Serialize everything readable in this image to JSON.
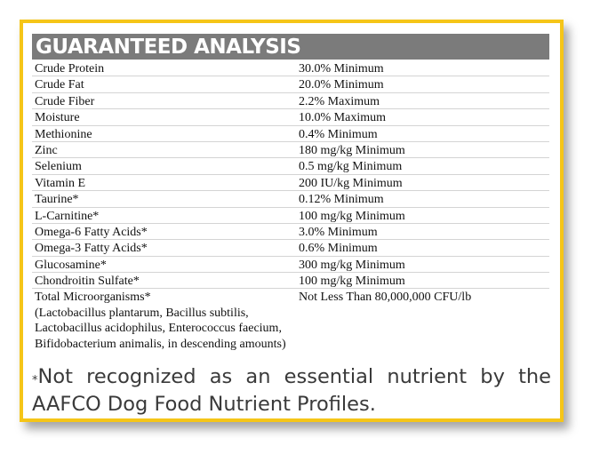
{
  "header": {
    "title": "GUARANTEED ANALYSIS"
  },
  "rows": [
    {
      "name": "Crude Protein",
      "value": "30.0% Minimum"
    },
    {
      "name": "Crude Fat",
      "value": "20.0% Minimum"
    },
    {
      "name": "Crude Fiber",
      "value": "2.2% Maximum"
    },
    {
      "name": "Moisture",
      "value": "10.0% Maximum"
    },
    {
      "name": "Methionine",
      "value": "0.4% Minimum"
    },
    {
      "name": "Zinc",
      "value": "180 mg/kg Minimum"
    },
    {
      "name": "Selenium",
      "value": "0.5 mg/kg Minimum"
    },
    {
      "name": "Vitamin E",
      "value": "200 IU/kg Minimum"
    },
    {
      "name": "Taurine*",
      "value": "0.12% Minimum"
    },
    {
      "name": "L-Carnitine*",
      "value": "100 mg/kg Minimum"
    },
    {
      "name": "Omega-6 Fatty Acids*",
      "value": "3.0% Minimum"
    },
    {
      "name": "Omega-3 Fatty Acids*",
      "value": "0.6% Minimum"
    },
    {
      "name": "Glucosamine*",
      "value": "300 mg/kg Minimum"
    },
    {
      "name": "Chondroitin Sulfate*",
      "value": "100 mg/kg Minimum"
    },
    {
      "name": "Total Microorganisms*\n(Lactobacillus plantarum, Bacillus subtilis,\nLactobacillus acidophilus, Enterococcus faecium,\nBifidobacterium animalis, in descending amounts)",
      "value": "Not Less Than 80,000,000 CFU/lb"
    }
  ],
  "footnote": {
    "marker": "*",
    "text": "Not recognized as an essential nutrient by the AAFCO Dog Food Nutrient Profiles."
  },
  "colors": {
    "border": "#f5c518",
    "header_bg": "#7b7b7b",
    "header_text": "#ffffff"
  }
}
